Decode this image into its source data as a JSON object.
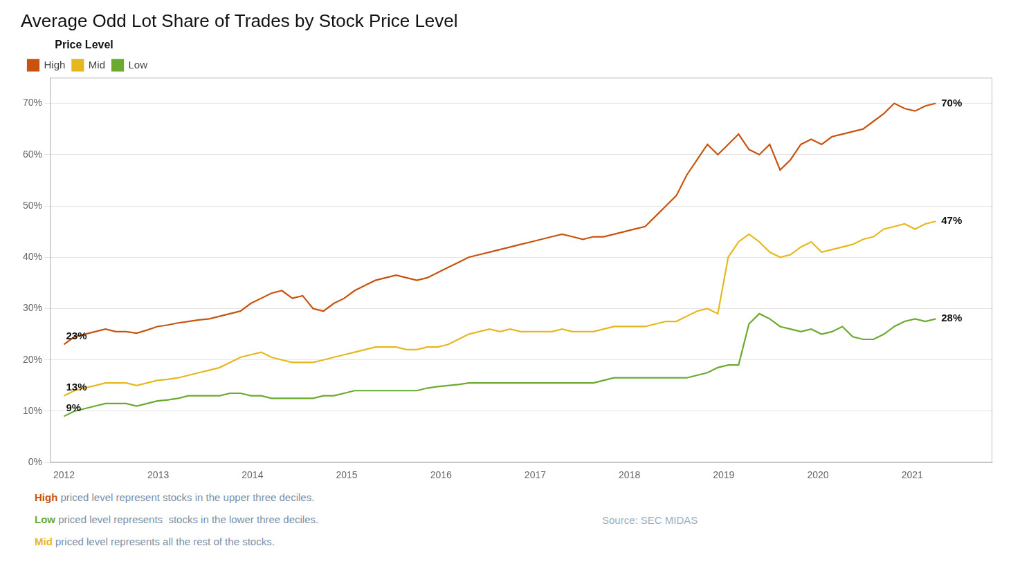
{
  "chart_data": {
    "type": "line",
    "title": "Average Odd Lot Share of Trades by Stock Price Level",
    "x": [
      2012.0,
      2012.1101,
      2012.2202,
      2012.3304,
      2012.4405,
      2012.5506,
      2012.6607,
      2012.7708,
      2012.881,
      2012.9911,
      2013.1012,
      2013.2113,
      2013.3214,
      2013.4315,
      2013.5417,
      2013.6518,
      2013.7619,
      2013.872,
      2013.9821,
      2014.0923,
      2014.2024,
      2014.3125,
      2014.4226,
      2014.5327,
      2014.6429,
      2014.753,
      2014.8631,
      2014.9732,
      2015.0833,
      2015.1935,
      2015.3036,
      2015.4137,
      2015.5238,
      2015.6339,
      2015.744,
      2015.8542,
      2015.9643,
      2016.0744,
      2016.1845,
      2016.2946,
      2016.4048,
      2016.5149,
      2016.625,
      2016.7351,
      2016.8452,
      2016.9554,
      2017.0655,
      2017.1756,
      2017.2857,
      2017.3958,
      2017.506,
      2017.6161,
      2017.7262,
      2017.8363,
      2017.9464,
      2018.0565,
      2018.1667,
      2018.2768,
      2018.3869,
      2018.497,
      2018.6071,
      2018.7173,
      2018.8274,
      2018.9375,
      2019.0476,
      2019.1577,
      2019.2679,
      2019.378,
      2019.4881,
      2019.5982,
      2019.7083,
      2019.8185,
      2019.9286,
      2020.0387,
      2020.1488,
      2020.2589,
      2020.369,
      2020.4792,
      2020.5893,
      2020.6994,
      2020.8095,
      2020.9196,
      2021.0298,
      2021.1399,
      2021.25
    ],
    "series": [
      {
        "name": "High",
        "color": "#c8530e",
        "values": [
          0.23,
          0.245,
          0.25,
          0.255,
          0.26,
          0.255,
          0.255,
          0.252,
          0.258,
          0.265,
          0.268,
          0.272,
          0.275,
          0.278,
          0.28,
          0.285,
          0.29,
          0.295,
          0.31,
          0.32,
          0.33,
          0.335,
          0.32,
          0.325,
          0.3,
          0.295,
          0.31,
          0.32,
          0.335,
          0.345,
          0.355,
          0.36,
          0.365,
          0.36,
          0.355,
          0.36,
          0.37,
          0.38,
          0.39,
          0.4,
          0.405,
          0.41,
          0.415,
          0.42,
          0.425,
          0.43,
          0.435,
          0.44,
          0.445,
          0.44,
          0.435,
          0.44,
          0.44,
          0.445,
          0.45,
          0.455,
          0.46,
          0.48,
          0.5,
          0.52,
          0.56,
          0.59,
          0.62,
          0.6,
          0.62,
          0.64,
          0.61,
          0.6,
          0.62,
          0.57,
          0.59,
          0.62,
          0.63,
          0.62,
          0.635,
          0.64,
          0.645,
          0.65,
          0.665,
          0.68,
          0.7,
          0.69,
          0.685,
          0.695,
          0.7
        ]
      },
      {
        "name": "Mid",
        "color": "#e6b820",
        "values": [
          0.13,
          0.14,
          0.145,
          0.15,
          0.155,
          0.155,
          0.155,
          0.15,
          0.155,
          0.16,
          0.162,
          0.165,
          0.17,
          0.175,
          0.18,
          0.185,
          0.195,
          0.205,
          0.21,
          0.215,
          0.205,
          0.2,
          0.195,
          0.195,
          0.195,
          0.2,
          0.205,
          0.21,
          0.215,
          0.22,
          0.225,
          0.225,
          0.225,
          0.22,
          0.22,
          0.225,
          0.225,
          0.23,
          0.24,
          0.25,
          0.255,
          0.26,
          0.255,
          0.26,
          0.255,
          0.255,
          0.255,
          0.255,
          0.26,
          0.255,
          0.255,
          0.255,
          0.26,
          0.265,
          0.265,
          0.265,
          0.265,
          0.27,
          0.275,
          0.275,
          0.285,
          0.295,
          0.3,
          0.29,
          0.4,
          0.43,
          0.445,
          0.43,
          0.41,
          0.4,
          0.405,
          0.42,
          0.43,
          0.41,
          0.415,
          0.42,
          0.425,
          0.435,
          0.44,
          0.455,
          0.46,
          0.465,
          0.455,
          0.465,
          0.47
        ]
      },
      {
        "name": "Low",
        "color": "#6aaa2e",
        "values": [
          0.09,
          0.1,
          0.105,
          0.11,
          0.115,
          0.115,
          0.115,
          0.11,
          0.115,
          0.12,
          0.122,
          0.125,
          0.13,
          0.13,
          0.13,
          0.13,
          0.135,
          0.135,
          0.13,
          0.13,
          0.125,
          0.125,
          0.125,
          0.125,
          0.125,
          0.13,
          0.13,
          0.135,
          0.14,
          0.14,
          0.14,
          0.14,
          0.14,
          0.14,
          0.14,
          0.145,
          0.148,
          0.15,
          0.152,
          0.155,
          0.155,
          0.155,
          0.155,
          0.155,
          0.155,
          0.155,
          0.155,
          0.155,
          0.155,
          0.155,
          0.155,
          0.155,
          0.16,
          0.165,
          0.165,
          0.165,
          0.165,
          0.165,
          0.165,
          0.165,
          0.165,
          0.17,
          0.175,
          0.185,
          0.19,
          0.19,
          0.27,
          0.29,
          0.28,
          0.265,
          0.26,
          0.255,
          0.26,
          0.25,
          0.255,
          0.265,
          0.245,
          0.24,
          0.24,
          0.25,
          0.265,
          0.275,
          0.28,
          0.275,
          0.28
        ]
      }
    ],
    "xlim": [
      2011.85,
      2021.85
    ],
    "xticks": [
      2012,
      2013,
      2014,
      2015,
      2016,
      2017,
      2018,
      2019,
      2020,
      2021
    ],
    "ylim": [
      0,
      0.75
    ],
    "yticks": [
      {
        "value": 0.0,
        "label": "0%"
      },
      {
        "value": 0.1,
        "label": "10%"
      },
      {
        "value": 0.2,
        "label": "20%"
      },
      {
        "value": 0.3,
        "label": "30%"
      },
      {
        "value": 0.4,
        "label": "40%"
      },
      {
        "value": 0.5,
        "label": "50%"
      },
      {
        "value": 0.6,
        "label": "60%"
      },
      {
        "value": 0.7,
        "label": "70%"
      }
    ],
    "grid": "y",
    "legend": "upper left",
    "legend_title": "Price Level",
    "annotations": [
      {
        "text": "23%",
        "x": 2012.0,
        "y": 0.23
      },
      {
        "text": "13%",
        "x": 2012.0,
        "y": 0.13
      },
      {
        "text": "9%",
        "x": 2012.0,
        "y": 0.09
      },
      {
        "text": "70%",
        "x": 2021.25,
        "y": 0.7
      },
      {
        "text": "47%",
        "x": 2021.25,
        "y": 0.47
      },
      {
        "text": "28%",
        "x": 2021.25,
        "y": 0.28
      }
    ],
    "notes": [
      [
        {
          "text": "High",
          "color": "#c8530e",
          "bold": true
        },
        {
          "text": " priced level represent stocks in the upper three deciles.",
          "color": "#7a8fa6",
          "bold": false
        }
      ],
      [
        {
          "text": "Low",
          "color": "#6aaa2e",
          "bold": true
        },
        {
          "text": " priced level represents  stocks in the lower three deciles.",
          "color": "#7a8fa6",
          "bold": false
        }
      ],
      [
        {
          "text": "Mid",
          "color": "#e6b820",
          "bold": true
        },
        {
          "text": " priced level represents all the rest of the stocks.",
          "color": "#7a8fa6",
          "bold": false
        }
      ]
    ],
    "source": {
      "text": "Source: SEC MIDAS",
      "color": "#9aafbf"
    }
  }
}
